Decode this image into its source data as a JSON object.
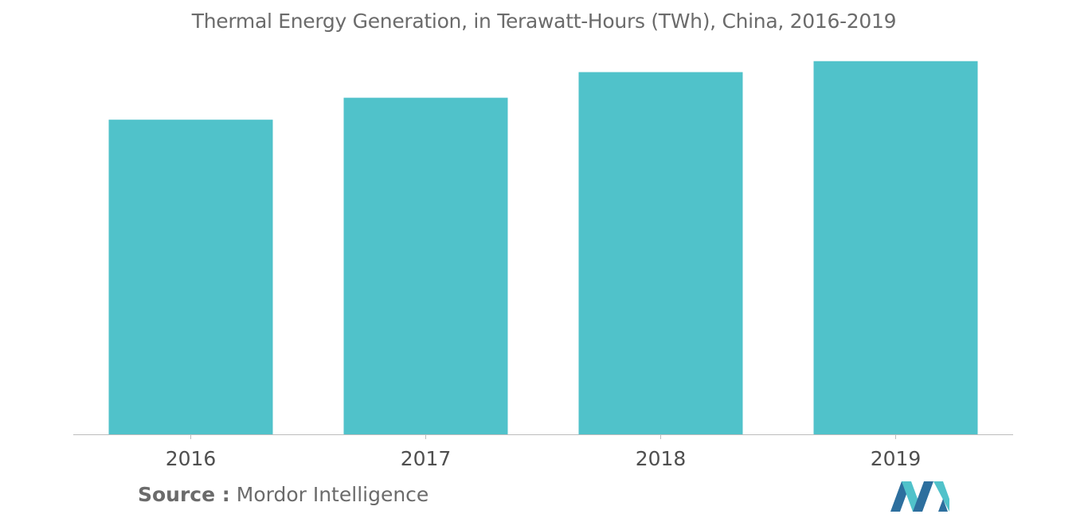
{
  "chart_data": {
    "type": "bar",
    "title": "Thermal Energy Generation, in Terawatt-Hours (TWh), China, 2016-2019",
    "categories": [
      "2016",
      "2017",
      "2018",
      "2019"
    ],
    "values": [
      4300,
      4600,
      4950,
      5100
    ],
    "xlabel": "",
    "ylabel": "",
    "ylim": [
      0,
      5500
    ],
    "grid": false,
    "legend": "none",
    "bar_color": "#50c2ca",
    "axis_color": "#bdbdbd"
  },
  "footer": {
    "source_label": "Source :",
    "source_name": "Mordor Intelligence"
  },
  "logo": {
    "icon": "mordor-intelligence-logo-icon",
    "colors": [
      "#2d6f9e",
      "#50c2ca"
    ]
  }
}
